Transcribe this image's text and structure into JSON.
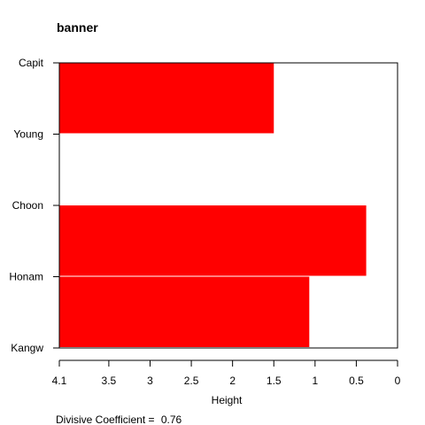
{
  "chart_data": {
    "type": "bar",
    "orientation": "horizontal",
    "title": "banner",
    "xlabel": "Height",
    "ylabel": "",
    "xlim": [
      4.1,
      0
    ],
    "x_reversed": true,
    "xticks": [
      4.1,
      3.5,
      3,
      2.5,
      2,
      1.5,
      1,
      0.5,
      0
    ],
    "tick_labels": [
      "4.1",
      "3.5",
      "3",
      "2.5",
      "2",
      "1.5",
      "1",
      "0.5",
      "0"
    ],
    "categories": [
      "Capit",
      "Young",
      "Choon",
      "Honam",
      "Kangw"
    ],
    "segments": [
      {
        "from": "Capit",
        "to": "Young",
        "height": 1.5
      },
      {
        "from": "Young",
        "to": "Choon",
        "height": 0
      },
      {
        "from": "Choon",
        "to": "Honam",
        "height": 0.38
      },
      {
        "from": "Honam",
        "to": "Kangw",
        "height": 1.07
      }
    ],
    "bar_color": "#ff0000",
    "grid": false,
    "legend": "none"
  },
  "footnote": {
    "label": "Divisive Coefficient = ",
    "value": "0.76"
  }
}
